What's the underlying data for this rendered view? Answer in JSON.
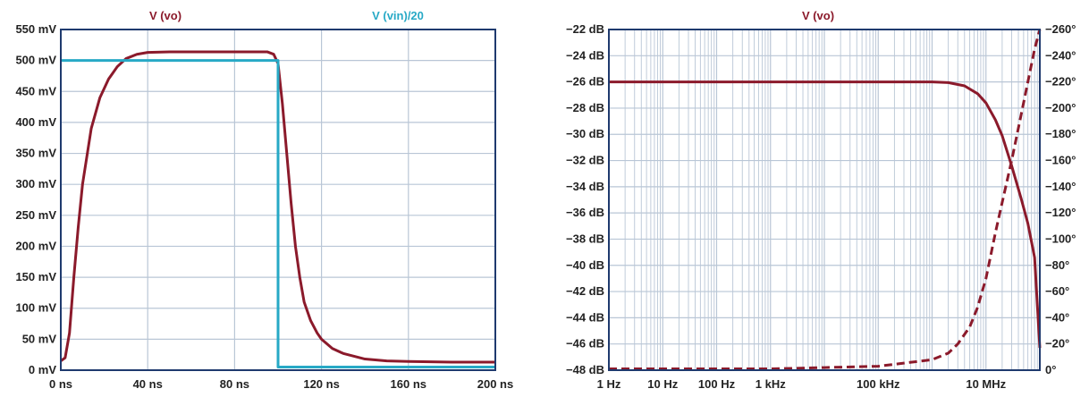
{
  "chart_data": [
    {
      "type": "line",
      "title_vo": "V (vo)",
      "title_vin": "V (vin)/20",
      "x_unit": "ns",
      "y_unit": "mV",
      "xlim": [
        0,
        200
      ],
      "ylim": [
        0,
        550
      ],
      "x_ticks": [
        0,
        40,
        80,
        120,
        160,
        200
      ],
      "y_ticks": [
        0,
        50,
        100,
        150,
        200,
        250,
        300,
        350,
        400,
        450,
        500,
        550
      ],
      "x_tick_labels": [
        "0 ns",
        "40 ns",
        "80 ns",
        "120 ns",
        "160 ns",
        "200 ns"
      ],
      "y_tick_labels": [
        "0 mV",
        "50 mV",
        "100 mV",
        "150 mV",
        "200 mV",
        "250 mV",
        "300 mV",
        "350 mV",
        "400 mV",
        "450 mV",
        "500 mV",
        "550 mV"
      ],
      "grid": true,
      "series": [
        {
          "name": "V (vo)",
          "color": "#8b1a2b",
          "x": [
            0,
            2,
            4,
            6,
            8,
            10,
            14,
            18,
            22,
            26,
            30,
            35,
            40,
            50,
            60,
            80,
            95,
            98,
            100,
            102,
            104,
            106,
            108,
            110,
            112,
            115,
            118,
            120,
            125,
            130,
            140,
            150,
            160,
            180,
            200
          ],
          "y": [
            15,
            20,
            60,
            150,
            230,
            300,
            390,
            440,
            470,
            490,
            503,
            510,
            513,
            514,
            514,
            514,
            514,
            510,
            495,
            430,
            350,
            270,
            200,
            150,
            110,
            80,
            60,
            50,
            35,
            27,
            18,
            15,
            14,
            13,
            13
          ]
        },
        {
          "name": "V (vin)/20",
          "color": "#27a9c6",
          "x": [
            0,
            100,
            100,
            200
          ],
          "y": [
            500,
            500,
            5,
            5
          ]
        }
      ]
    },
    {
      "type": "line",
      "title": "V (vo)",
      "x_scale": "log",
      "x_unit": "Hz",
      "xlim": [
        1,
        100000000
      ],
      "y_unit": "dB",
      "ylim": [
        -48,
        -22
      ],
      "y2_unit": "°",
      "y2lim": [
        -260,
        0
      ],
      "x_tick_labels": [
        {
          "value": 1,
          "label": "1 Hz"
        },
        {
          "value": 10,
          "label": "10 Hz"
        },
        {
          "value": 100,
          "label": "100 Hz"
        },
        {
          "value": 1000,
          "label": "1 kHz"
        },
        {
          "value": 100000,
          "label": "100 kHz"
        },
        {
          "value": 10000000,
          "label": "10 MHz"
        }
      ],
      "y_ticks": [
        -22,
        -24,
        -26,
        -28,
        -30,
        -32,
        -34,
        -36,
        -38,
        -40,
        -42,
        -44,
        -46,
        -48
      ],
      "y_tick_labels": [
        "−22 dB",
        "−24 dB",
        "−26 dB",
        "−28 dB",
        "−30 dB",
        "−32 dB",
        "−34 dB",
        "−36 dB",
        "−38 dB",
        "−40 dB",
        "−42 dB",
        "−44 dB",
        "−46 dB",
        "−48 dB"
      ],
      "y2_ticks": [
        0,
        -20,
        -40,
        -60,
        -80,
        -100,
        -120,
        -140,
        -160,
        -180,
        -200,
        -220,
        -240,
        -260
      ],
      "y2_tick_labels": [
        "0°",
        "−20°",
        "−40°",
        "−60°",
        "−80°",
        "−100°",
        "−120°",
        "−140°",
        "−160°",
        "−180°",
        "−200°",
        "−220°",
        "−240°",
        "−260°"
      ],
      "grid": true,
      "series": [
        {
          "name": "magnitude",
          "axis": "left",
          "style": "solid",
          "color": "#8b1a2b",
          "x": [
            1,
            10,
            100,
            1000,
            10000,
            100000,
            1000000,
            2000000,
            4000000,
            7000000,
            10000000,
            15000000,
            20000000,
            30000000,
            45000000,
            60000000,
            80000000,
            100000000
          ],
          "y": [
            -26,
            -26,
            -26,
            -26,
            -26,
            -26,
            -26,
            -26.05,
            -26.3,
            -26.9,
            -27.6,
            -28.9,
            -30.1,
            -32.4,
            -34.9,
            -36.8,
            -39.4,
            -46.3
          ]
        },
        {
          "name": "phase",
          "axis": "right",
          "style": "dashed",
          "color": "#8b1a2b",
          "x": [
            1,
            10,
            100,
            1000,
            10000,
            100000,
            1000000,
            2000000,
            3000000,
            5000000,
            7000000,
            10000000,
            15000000,
            20000000,
            30000000,
            45000000,
            60000000,
            80000000,
            100000000
          ],
          "y": [
            -1,
            -1,
            -1,
            -1,
            -2,
            -3,
            -8,
            -13,
            -20,
            -33,
            -48,
            -70,
            -105,
            -128,
            -160,
            -195,
            -220,
            -245,
            -260
          ]
        }
      ]
    }
  ]
}
